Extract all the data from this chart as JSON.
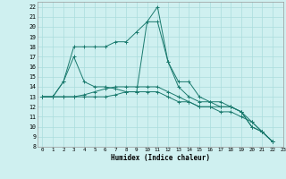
{
  "xlabel": "Humidex (Indice chaleur)",
  "bg_color": "#cff0f0",
  "grid_color": "#aadddd",
  "line_color": "#1a7a6e",
  "xlim": [
    -0.5,
    23
  ],
  "ylim": [
    8,
    22.5
  ],
  "xticks": [
    0,
    1,
    2,
    3,
    4,
    5,
    6,
    7,
    8,
    9,
    10,
    11,
    12,
    13,
    14,
    15,
    16,
    17,
    18,
    19,
    20,
    21,
    22,
    23
  ],
  "yticks": [
    8,
    9,
    10,
    11,
    12,
    13,
    14,
    15,
    16,
    17,
    18,
    19,
    20,
    21,
    22
  ],
  "series": [
    [
      13,
      13,
      14.5,
      18,
      18,
      18,
      18,
      18.5,
      18.5,
      19.5,
      20.5,
      22,
      16.5,
      14.5,
      14.5,
      13,
      12.5,
      12.5,
      12,
      11.5,
      10,
      9.5,
      8.5
    ],
    [
      13,
      13,
      14.5,
      17,
      14.5,
      14,
      14,
      13.8,
      13.5,
      13.5,
      20.5,
      20.5,
      16.5,
      14,
      13,
      12.5,
      12.5,
      12,
      12,
      11.5,
      10.5,
      9.5,
      8.5
    ],
    [
      13,
      13,
      13,
      13,
      13,
      13,
      13,
      13.2,
      13.5,
      13.5,
      13.5,
      13.5,
      13,
      12.5,
      12.5,
      12,
      12,
      12,
      12,
      11.5,
      10,
      9.5,
      8.5
    ],
    [
      13,
      13,
      13,
      13,
      13.2,
      13.5,
      13.8,
      14,
      14,
      14,
      14,
      14,
      13.5,
      13,
      12.5,
      12,
      12,
      11.5,
      11.5,
      11,
      10.5,
      9.5,
      8.5
    ]
  ]
}
